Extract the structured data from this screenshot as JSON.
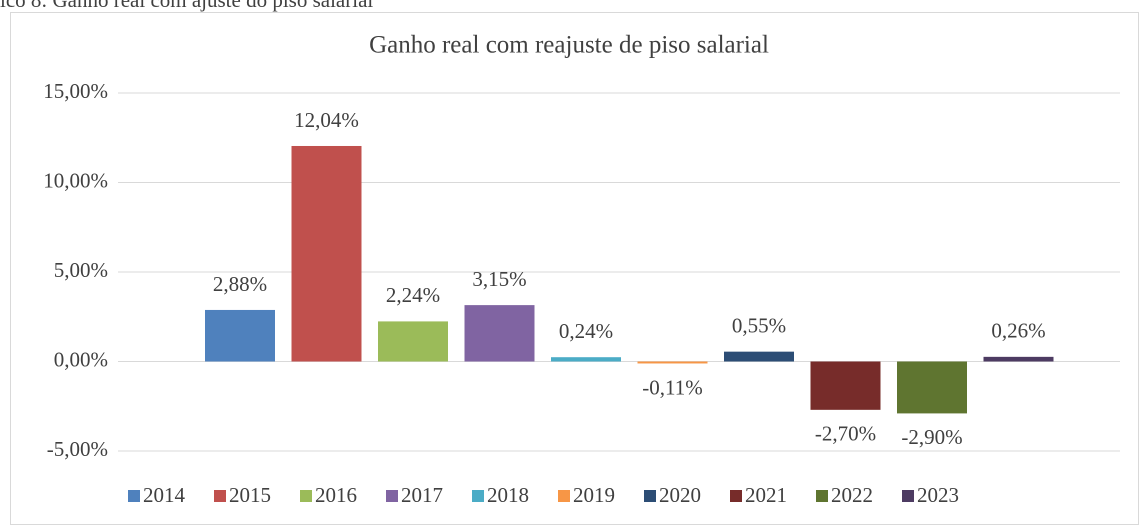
{
  "chart_data": {
    "type": "bar",
    "caption": "ico 8: Ganho real com ajuste do piso salarial",
    "title": "Ganho real com reajuste de piso salarial",
    "series": [
      {
        "name": "2014",
        "color": "#4f81bd",
        "values": [
          2.88
        ],
        "value_labels": [
          "2,88%"
        ]
      },
      {
        "name": "2015",
        "color": "#c0504d",
        "values": [
          12.04
        ],
        "value_labels": [
          "12,04%"
        ]
      },
      {
        "name": "2016",
        "color": "#9bbb59",
        "values": [
          2.24
        ],
        "value_labels": [
          "2,24%"
        ]
      },
      {
        "name": "2017",
        "color": "#8064a2",
        "values": [
          3.15
        ],
        "value_labels": [
          "3,15%"
        ]
      },
      {
        "name": "2018",
        "color": "#4bacc6",
        "values": [
          0.24
        ],
        "value_labels": [
          "0,24%"
        ]
      },
      {
        "name": "2019",
        "color": "#f79646",
        "values": [
          -0.11
        ],
        "value_labels": [
          "-0,11%"
        ]
      },
      {
        "name": "2020",
        "color": "#2c4d75",
        "values": [
          0.55
        ],
        "value_labels": [
          "0,55%"
        ]
      },
      {
        "name": "2021",
        "color": "#772c2a",
        "values": [
          -2.7
        ],
        "value_labels": [
          "-2,70%"
        ]
      },
      {
        "name": "2022",
        "color": "#5f7530",
        "values": [
          -2.9
        ],
        "value_labels": [
          "-2,90%"
        ]
      },
      {
        "name": "2023",
        "color": "#4d3b62",
        "values": [
          0.26
        ],
        "value_labels": [
          "0,26%"
        ]
      }
    ],
    "ylim": [
      -5,
      15
    ],
    "yticks": [
      {
        "value": -5,
        "label": "-5,00%"
      },
      {
        "value": 0,
        "label": "0,00%"
      },
      {
        "value": 5,
        "label": "5,00%"
      },
      {
        "value": 10,
        "label": "10,00%"
      },
      {
        "value": 15,
        "label": "15,00%"
      }
    ],
    "grid": true,
    "legend": "bottom"
  }
}
